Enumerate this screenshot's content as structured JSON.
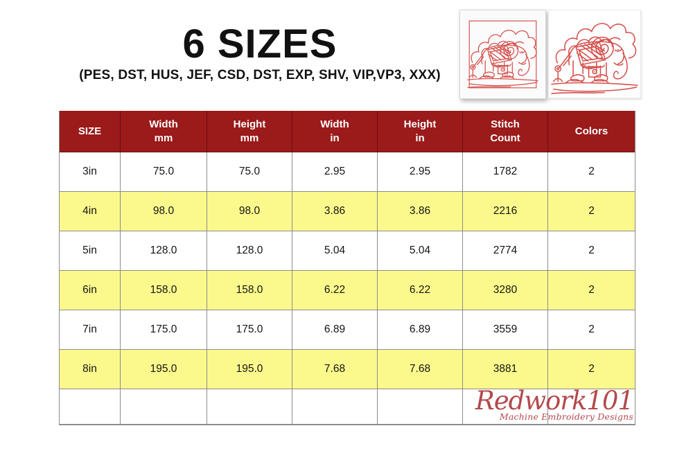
{
  "title": "6 SIZES",
  "subtitle": "(PES, DST, HUS, JEF, CSD, DST, EXP, SHV, VIP,VP3, XXX)",
  "chart_data": {
    "type": "table",
    "columns": [
      [
        "SIZE"
      ],
      [
        "Width",
        "mm"
      ],
      [
        "Height",
        "mm"
      ],
      [
        "Width",
        "in"
      ],
      [
        "Height",
        "in"
      ],
      [
        "Stitch",
        "Count"
      ],
      [
        "Colors"
      ]
    ],
    "rows": [
      {
        "cells": [
          "3in",
          "75.0",
          "75.0",
          "2.95",
          "2.95",
          "1782",
          "2"
        ],
        "highlight": false
      },
      {
        "cells": [
          "4in",
          "98.0",
          "98.0",
          "3.86",
          "3.86",
          "2216",
          "2"
        ],
        "highlight": true
      },
      {
        "cells": [
          "5in",
          "128.0",
          "128.0",
          "5.04",
          "5.04",
          "2774",
          "2"
        ],
        "highlight": false
      },
      {
        "cells": [
          "6in",
          "158.0",
          "158.0",
          "6.22",
          "6.22",
          "3280",
          "2"
        ],
        "highlight": true
      },
      {
        "cells": [
          "7in",
          "175.0",
          "175.0",
          "6.89",
          "6.89",
          "3559",
          "2"
        ],
        "highlight": false
      },
      {
        "cells": [
          "8in",
          "195.0",
          "195.0",
          "7.68",
          "7.68",
          "3881",
          "2"
        ],
        "highlight": true
      }
    ],
    "trailing_empty_row": true
  },
  "thumbnails": {
    "left_name": "redwork-elephant-framed",
    "right_name": "redwork-elephant-closeup"
  },
  "logo": {
    "name": "Redwork101",
    "tagline": "Machine Embroidery Designs"
  },
  "colors": {
    "header_bg": "#9B1A1A",
    "header_text": "#FFFFFF",
    "row_highlight": "#FBF98C",
    "grid_line": "#8C8C8C",
    "logo_red": "#B4494B",
    "art_red": "#D5504C",
    "title_text": "#111111"
  }
}
